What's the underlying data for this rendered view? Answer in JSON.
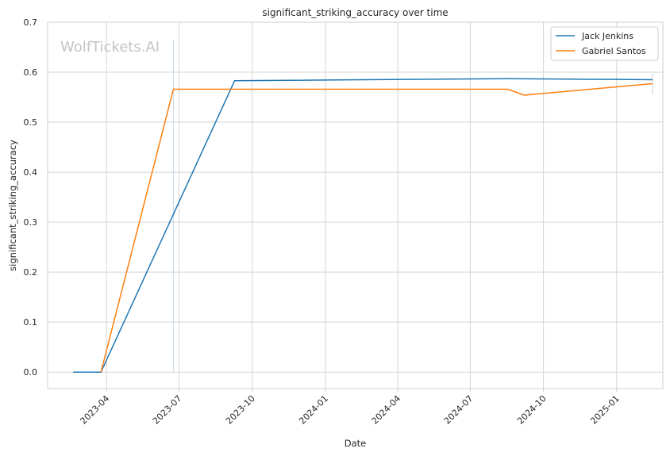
{
  "watermark": "WolfTickets.AI",
  "chart_data": {
    "type": "line",
    "title": "significant_striking_accuracy over time",
    "xlabel": "Date",
    "ylabel": "significant_striking_accuracy",
    "xlim": [
      "2023-01-17",
      "2025-02-28"
    ],
    "ylim": [
      -0.033,
      0.7
    ],
    "x_ticks": [
      "2023-04",
      "2023-07",
      "2023-10",
      "2024-01",
      "2024-04",
      "2024-07",
      "2024-10",
      "2025-01"
    ],
    "y_ticks": [
      "0.0",
      "0.1",
      "0.2",
      "0.3",
      "0.4",
      "0.5",
      "0.6",
      "0.7"
    ],
    "grid": true,
    "legend_position": "top-right",
    "series": [
      {
        "name": "Jack Jenkins",
        "color": "#1f77b4",
        "points": [
          {
            "x": "2023-02-18",
            "y": 0.0
          },
          {
            "x": "2023-03-25",
            "y": 0.0
          },
          {
            "x": "2023-09-09",
            "y": 0.583
          },
          {
            "x": "2024-08-24",
            "y": 0.587
          },
          {
            "x": "2025-02-15",
            "y": 0.585
          }
        ]
      },
      {
        "name": "Gabriel Santos",
        "color": "#ff7f0e",
        "points": [
          {
            "x": "2023-03-25",
            "y": 0.0
          },
          {
            "x": "2023-06-24",
            "y": 0.566
          },
          {
            "x": "2024-08-17",
            "y": 0.566
          },
          {
            "x": "2024-09-07",
            "y": 0.554
          },
          {
            "x": "2025-02-15",
            "y": 0.577
          }
        ]
      }
    ],
    "event_markers": [
      {
        "x": "2023-06-24",
        "y_range": [
          0.0,
          0.665
        ],
        "color": "#c9d6ea"
      },
      {
        "x": "2025-02-15",
        "y_range": [
          0.555,
          0.598
        ],
        "color": "#cfcfcf"
      }
    ]
  }
}
